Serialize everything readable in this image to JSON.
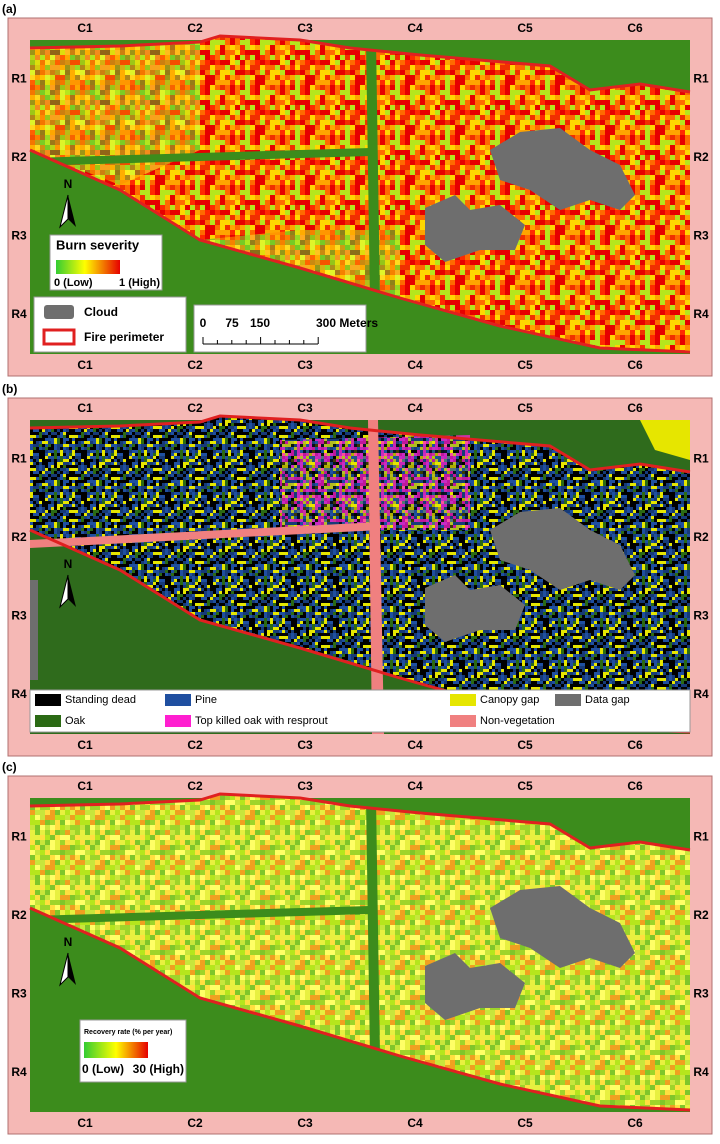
{
  "panels": [
    {
      "label": "(a)",
      "columns": [
        "C1",
        "C2",
        "C3",
        "C4",
        "C5",
        "C6"
      ],
      "rows": [
        "R1",
        "R2",
        "R3",
        "R4"
      ],
      "north": "N",
      "legend": {
        "title": "Burn severity",
        "low": "0 (Low)",
        "high": "1 (High)",
        "items": [
          "Cloud",
          "Fire perimeter"
        ],
        "scale": [
          "0",
          "75",
          "150",
          "300 Meters"
        ]
      }
    },
    {
      "label": "(b)",
      "columns": [
        "C1",
        "C2",
        "C3",
        "C4",
        "C5",
        "C6"
      ],
      "rows": [
        "R1",
        "R2",
        "R3",
        "R4"
      ],
      "north": "N",
      "legend": {
        "items": [
          {
            "label": "Standing dead",
            "color": "#000000"
          },
          {
            "label": "Pine",
            "color": "#1f4fa0"
          },
          {
            "label": "Canopy gap",
            "color": "#e6e600"
          },
          {
            "label": "Data gap",
            "color": "#6e6e6e"
          },
          {
            "label": "Oak",
            "color": "#2b6a14"
          },
          {
            "label": "Top killed oak with resprout",
            "color": "#ff1fd0"
          },
          {
            "label": "Non-vegetation",
            "color": "#f08080"
          }
        ]
      }
    },
    {
      "label": "(c)",
      "columns": [
        "C1",
        "C2",
        "C3",
        "C4",
        "C5",
        "C6"
      ],
      "rows": [
        "R1",
        "R2",
        "R3",
        "R4"
      ],
      "north": "N",
      "legend": {
        "title": "Recovery rate (% per year)",
        "low": "0 (Low)",
        "high": "30 (High)"
      }
    }
  ]
}
